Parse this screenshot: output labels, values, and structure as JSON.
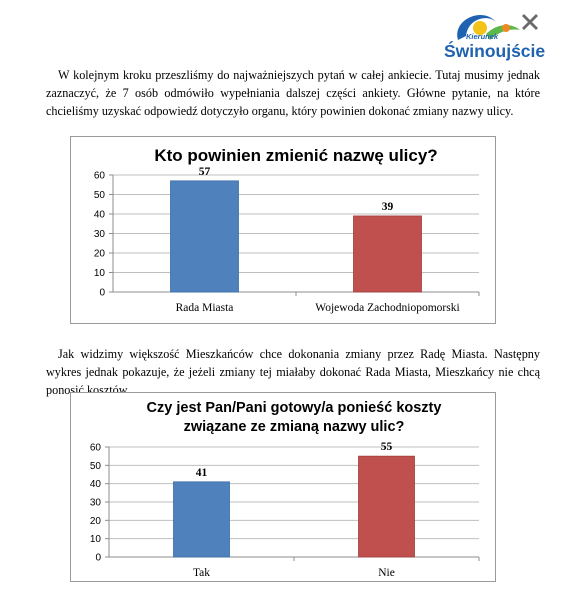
{
  "logo": {
    "small_text": "Kierunek",
    "city": "Świnoujście",
    "colors": {
      "blue": "#1f63b0",
      "yellow": "#f2c318",
      "green": "#5db84a",
      "orange": "#ef8a22"
    }
  },
  "paragraphs": [
    "W kolejnym kroku przeszliśmy do najważniejszych pytań w całej ankiecie. Tutaj musimy jednak zaznaczyć, że 7 osób odmówiło wypełniania dalszej części ankiety. Główne pytanie, na które chcieliśmy uzyskać odpowiedź dotyczyło organu, który powinien dokonać zmiany nazwy ulicy.",
    "Jak widzimy większość Mieszkańców chce dokonania zmiany przez Radę Miasta. Następny wykres jednak pokazuje, że jeżeli zmiany tej miałaby dokonać Rada Miasta, Mieszkańcy nie chcą ponosić kosztów."
  ],
  "chart_data": [
    {
      "type": "bar",
      "title": "Kto powinien zmienić nazwę ulicy?",
      "title_lines": [
        "Kto powinien zmienić nazwę ulicy?"
      ],
      "categories": [
        "Rada Miasta",
        "Wojewoda Zachodniopomorski"
      ],
      "values": [
        57,
        39
      ],
      "colors": [
        "#4f81bd",
        "#c0504d"
      ],
      "ylim": [
        0,
        60
      ],
      "yticks": [
        0,
        10,
        20,
        30,
        40,
        50,
        60
      ],
      "grid": true,
      "data_labels": true
    },
    {
      "type": "bar",
      "title": "Czy jest Pan/Pani gotowy/a ponieść koszty związane ze zmianą nazwy ulic?",
      "title_lines": [
        "Czy jest Pan/Pani gotowy/a ponieść koszty",
        "związane ze zmianą nazwy ulic?"
      ],
      "categories": [
        "Tak",
        "Nie"
      ],
      "values": [
        41,
        55
      ],
      "colors": [
        "#4f81bd",
        "#c0504d"
      ],
      "ylim": [
        0,
        60
      ],
      "yticks": [
        0,
        10,
        20,
        30,
        40,
        50,
        60
      ],
      "grid": true,
      "data_labels": true
    }
  ]
}
